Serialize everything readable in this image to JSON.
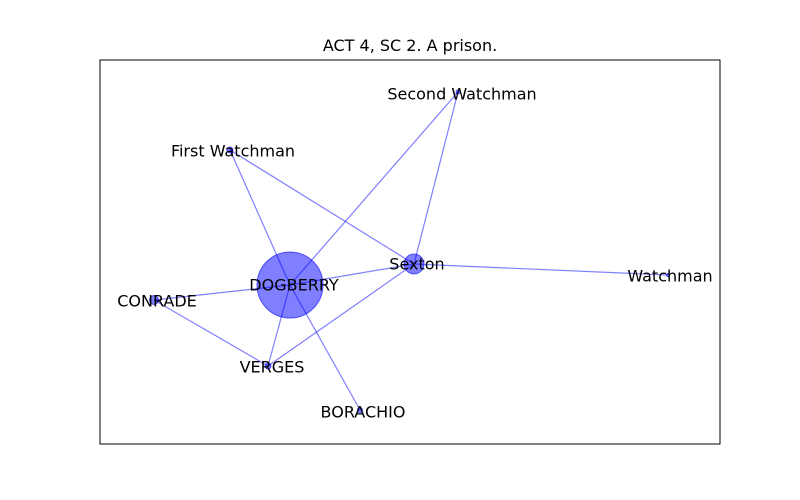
{
  "title": "ACT 4, SC 2. A prison.",
  "colors": {
    "node_fill": "#0000ff",
    "edge_stroke": "#0000ff",
    "frame": "#000000",
    "background": "#ffffff"
  },
  "graph": {
    "nodes": [
      {
        "id": "DOGBERRY",
        "label": "DOGBERRY"
      },
      {
        "id": "Sexton",
        "label": "Sexton"
      },
      {
        "id": "CONRADE",
        "label": "CONRADE"
      },
      {
        "id": "VERGES",
        "label": "VERGES"
      },
      {
        "id": "BORACHIO",
        "label": "BORACHIO"
      },
      {
        "id": "First Watchman",
        "label": "First Watchman"
      },
      {
        "id": "Second Watchman",
        "label": "Second Watchman"
      },
      {
        "id": "Watchman",
        "label": "Watchman"
      }
    ],
    "edges": [
      {
        "source": "DOGBERRY",
        "target": "First Watchman"
      },
      {
        "source": "DOGBERRY",
        "target": "Second Watchman"
      },
      {
        "source": "DOGBERRY",
        "target": "Sexton"
      },
      {
        "source": "DOGBERRY",
        "target": "CONRADE"
      },
      {
        "source": "DOGBERRY",
        "target": "VERGES"
      },
      {
        "source": "DOGBERRY",
        "target": "BORACHIO"
      },
      {
        "source": "Sexton",
        "target": "First Watchman"
      },
      {
        "source": "Sexton",
        "target": "Second Watchman"
      },
      {
        "source": "Sexton",
        "target": "Watchman"
      },
      {
        "source": "Sexton",
        "target": "VERGES"
      },
      {
        "source": "CONRADE",
        "target": "VERGES"
      }
    ]
  }
}
